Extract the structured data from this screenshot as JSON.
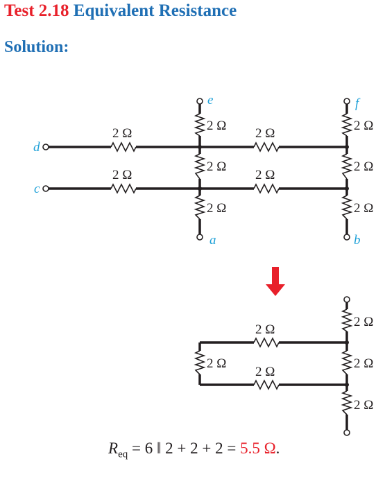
{
  "header": {
    "number": "Test 2.18",
    "title": "Equivalent Resistance"
  },
  "subheading": "Solution:",
  "resistor_label": "2 Ω",
  "nodes": {
    "a": "a",
    "b": "b",
    "c": "c",
    "d": "d",
    "e": "e",
    "f": "f"
  },
  "formula": {
    "symbol": "R",
    "subscript": "eq",
    "expression": " = 6 ‖ 2 + 2 + 2 = ",
    "result": "5.5 Ω",
    "end": "."
  },
  "colors": {
    "heading_number": "#e8202a",
    "heading_title": "#1f6fb4",
    "node_label": "#1fa1d8",
    "arrow": "#e8202a",
    "result": "#e8202a"
  }
}
